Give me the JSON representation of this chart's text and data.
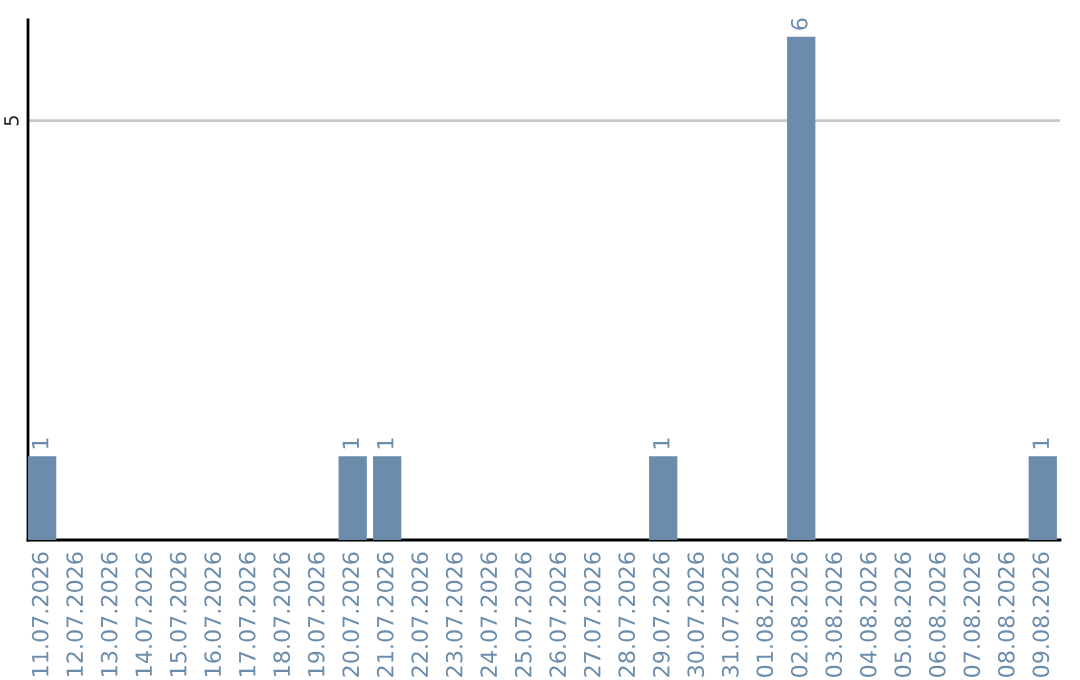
{
  "chart_data": {
    "type": "bar",
    "categories": [
      "11.07.2026",
      "12.07.2026",
      "13.07.2026",
      "14.07.2026",
      "15.07.2026",
      "16.07.2026",
      "17.07.2026",
      "18.07.2026",
      "19.07.2026",
      "20.07.2026",
      "21.07.2026",
      "22.07.2026",
      "23.07.2026",
      "24.07.2026",
      "25.07.2026",
      "26.07.2026",
      "27.07.2026",
      "28.07.2026",
      "29.07.2026",
      "30.07.2026",
      "31.07.2026",
      "01.08.2026",
      "02.08.2026",
      "03.08.2026",
      "04.08.2026",
      "05.08.2026",
      "06.08.2026",
      "07.08.2026",
      "08.08.2026",
      "09.08.2026"
    ],
    "values": [
      1,
      0,
      0,
      0,
      0,
      0,
      0,
      0,
      0,
      1,
      1,
      0,
      0,
      0,
      0,
      0,
      0,
      0,
      1,
      0,
      0,
      0,
      6,
      0,
      0,
      0,
      0,
      0,
      0,
      1
    ],
    "value_labels": [
      "1",
      null,
      null,
      null,
      null,
      null,
      null,
      null,
      null,
      "1",
      "1",
      null,
      null,
      null,
      null,
      null,
      null,
      null,
      "1",
      null,
      null,
      null,
      "6",
      null,
      null,
      null,
      null,
      null,
      null,
      "1"
    ],
    "color": "#6b8cab",
    "ylim": [
      0,
      6.2
    ],
    "yticks": [
      5
    ],
    "grid": "y",
    "legend": false
  }
}
